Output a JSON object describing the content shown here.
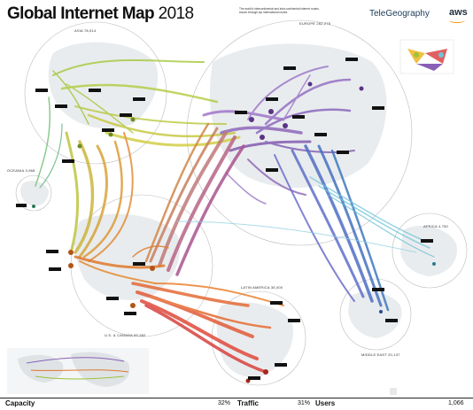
{
  "header": {
    "title": "Global Internet Map",
    "year": "2018",
    "subtitle": "The world's intercontinental and intra-continental internet routes, shown through top international routes.",
    "brand": "TeleGeography",
    "partner": "aws"
  },
  "regions": {
    "asia": "ASIA 78,514",
    "europe": "EUROPE 262,275",
    "oceania": "OCEANIA 3,968",
    "africa": "AFRICA 4,750",
    "us_canada": "U.S. & CANADA 95,382",
    "latin_america": "LATIN AMERICA 35,000",
    "middle_east": "MIDDLE EAST 20,137"
  },
  "colors": {
    "asia": "#9bc23a",
    "asia_dark": "#c8b32a",
    "europe": "#8a5fb8",
    "europe_dark": "#6a3e9e",
    "oceania": "#4fb58a",
    "africa": "#6ec3d8",
    "us_canada": "#e0782c",
    "latin_america": "#e04b3a",
    "middle_east": "#4a6fc1"
  },
  "footer": {
    "capacity_label": "Capacity",
    "capacity_value": "32%",
    "traffic_label": "Traffic",
    "traffic_value": "31%",
    "users_label": "Users",
    "users_value": "1,066"
  }
}
